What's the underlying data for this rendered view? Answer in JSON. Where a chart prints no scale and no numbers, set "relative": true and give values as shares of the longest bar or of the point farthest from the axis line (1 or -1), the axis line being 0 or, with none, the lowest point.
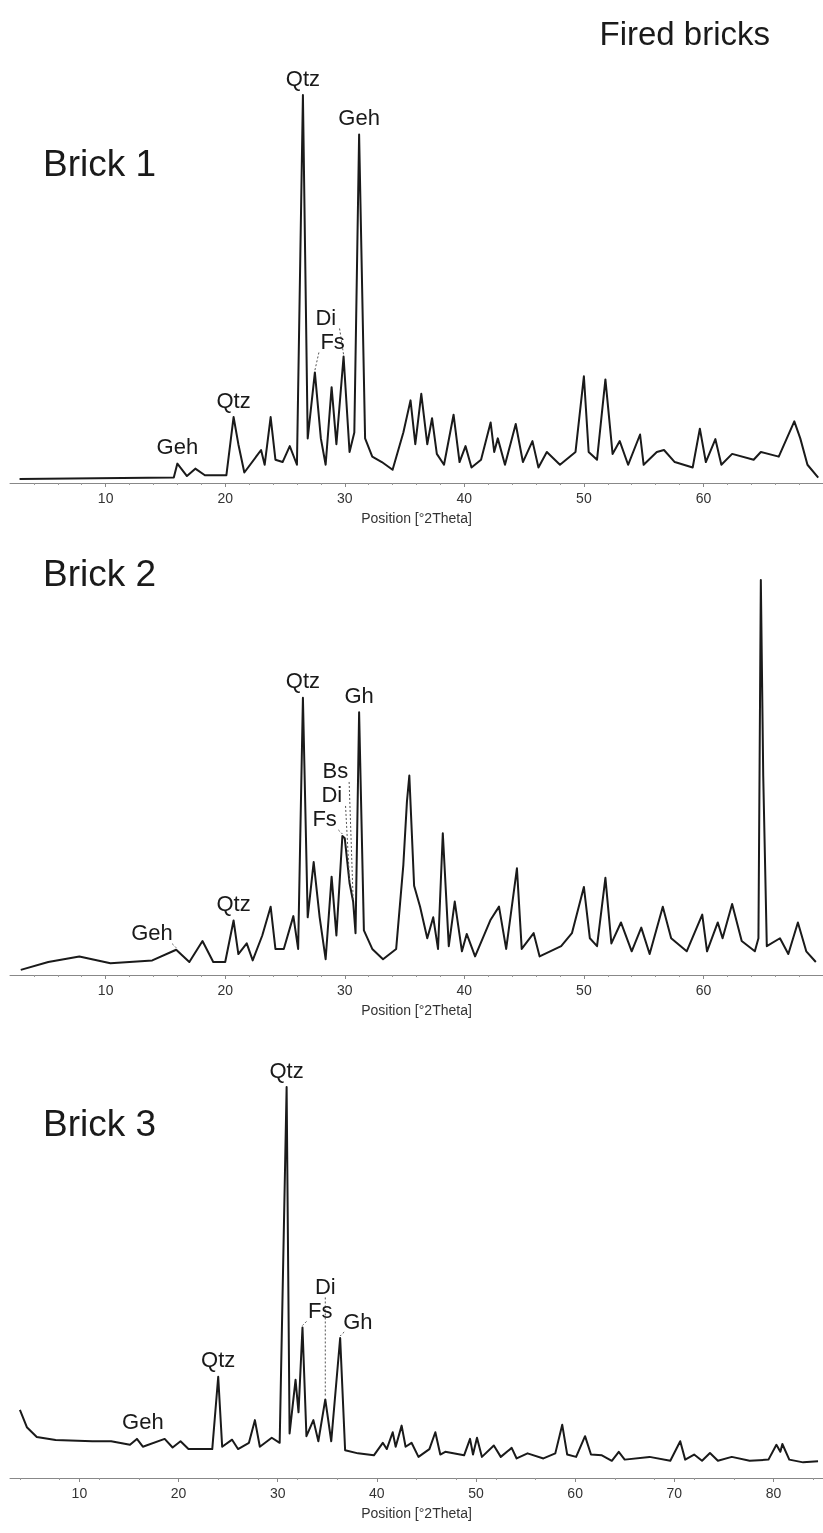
{
  "chart_data": [
    {
      "type": "line",
      "title": "Brick 1",
      "subtitle": "Fired bricks",
      "xlabel": "Position [°2Theta]",
      "relative": true,
      "xlim": [
        2,
        70
      ],
      "xticks": [
        10,
        20,
        30,
        40,
        50,
        60
      ],
      "series": [
        {
          "color": "#1a1a1a",
          "x": [
            2.8,
            15.7,
            16.0,
            16.8,
            17.5,
            18.3,
            20.1,
            20.7,
            21.1,
            21.6,
            23.0,
            23.3,
            23.8,
            24.2,
            24.8,
            25.4,
            26.0,
            26.5,
            26.9,
            27.5,
            28.0,
            28.4,
            28.9,
            29.3,
            29.9,
            30.4,
            30.8,
            31.2,
            31.7,
            32.3,
            33.1,
            34.0,
            34.9,
            35.5,
            35.9,
            36.4,
            36.9,
            37.3,
            37.7,
            38.3,
            39.1,
            39.6,
            40.1,
            40.6,
            41.4,
            42.2,
            42.5,
            42.8,
            43.4,
            44.3,
            44.9,
            45.7,
            46.2,
            46.9,
            48.0,
            49.3,
            50.0,
            50.4,
            51.1,
            51.8,
            52.4,
            53.0,
            53.7,
            54.7,
            55.0,
            56.1,
            56.7,
            57.6,
            59.1,
            59.7,
            60.2,
            61.0,
            61.5,
            62.4,
            64.2,
            64.8,
            66.3,
            67.6,
            68.1,
            68.7,
            69.6
          ],
          "values": [
            0.01,
            0.014,
            0.05,
            0.018,
            0.037,
            0.02,
            0.02,
            0.17,
            0.1,
            0.027,
            0.085,
            0.047,
            0.17,
            0.06,
            0.054,
            0.095,
            0.047,
            1.0,
            0.115,
            0.285,
            0.115,
            0.047,
            0.247,
            0.1,
            0.326,
            0.08,
            0.13,
            0.898,
            0.115,
            0.068,
            0.054,
            0.034,
            0.13,
            0.213,
            0.1,
            0.23,
            0.1,
            0.167,
            0.075,
            0.047,
            0.176,
            0.054,
            0.095,
            0.04,
            0.06,
            0.156,
            0.08,
            0.115,
            0.047,
            0.152,
            0.054,
            0.108,
            0.04,
            0.08,
            0.047,
            0.08,
            0.275,
            0.08,
            0.06,
            0.267,
            0.075,
            0.108,
            0.047,
            0.125,
            0.047,
            0.08,
            0.085,
            0.054,
            0.04,
            0.14,
            0.054,
            0.113,
            0.047,
            0.075,
            0.06,
            0.08,
            0.068,
            0.159,
            0.115,
            0.047,
            0.014
          ]
        }
      ],
      "annotations": [
        {
          "text": "Geh",
          "x": 16.0,
          "y": 0.05
        },
        {
          "text": "Qtz",
          "x": 20.7,
          "y": 0.17
        },
        {
          "text": "Qtz",
          "x": 26.5,
          "y": 1.0
        },
        {
          "text": "Fs",
          "x": 27.5,
          "y": 0.285
        },
        {
          "text": "Di",
          "x": 29.9,
          "y": 0.326
        },
        {
          "text": "Geh",
          "x": 31.2,
          "y": 0.898
        }
      ]
    },
    {
      "type": "line",
      "title": "Brick 2",
      "xlabel": "Position [°2Theta]",
      "relative": true,
      "xlim": [
        2,
        70
      ],
      "xticks": [
        10,
        20,
        30,
        40,
        50,
        60
      ],
      "series": [
        {
          "color": "#1a1a1a",
          "x": [
            2.9,
            5.2,
            7.8,
            10.4,
            13.9,
            15.9,
            17.0,
            18.1,
            19.0,
            20.0,
            20.7,
            21.1,
            21.8,
            22.3,
            23.1,
            23.8,
            24.2,
            24.9,
            25.7,
            26.1,
            26.5,
            26.9,
            27.4,
            27.9,
            28.4,
            28.9,
            29.3,
            29.8,
            30.0,
            30.4,
            30.7,
            30.9,
            31.2,
            31.6,
            32.3,
            33.2,
            34.3,
            34.9,
            35.2,
            35.4,
            35.8,
            36.3,
            36.9,
            37.4,
            37.8,
            38.2,
            38.7,
            39.2,
            39.8,
            40.2,
            40.9,
            42.2,
            42.9,
            43.5,
            44.4,
            44.8,
            45.8,
            46.3,
            48.1,
            49.0,
            50.0,
            50.5,
            51.1,
            51.8,
            52.3,
            53.1,
            54.0,
            54.8,
            55.5,
            56.6,
            57.3,
            58.6,
            59.9,
            60.3,
            61.2,
            61.6,
            62.4,
            63.2,
            64.3,
            64.6,
            64.8,
            65.0,
            65.3,
            66.4,
            67.1,
            67.9,
            68.6,
            69.4
          ],
          "values": [
            0.013,
            0.033,
            0.047,
            0.03,
            0.037,
            0.064,
            0.033,
            0.086,
            0.033,
            0.033,
            0.138,
            0.053,
            0.08,
            0.037,
            0.1,
            0.173,
            0.066,
            0.066,
            0.149,
            0.066,
            0.702,
            0.146,
            0.286,
            0.146,
            0.04,
            0.249,
            0.1,
            0.352,
            0.346,
            0.233,
            0.186,
            0.106,
            0.665,
            0.113,
            0.066,
            0.04,
            0.066,
            0.279,
            0.439,
            0.505,
            0.226,
            0.173,
            0.093,
            0.146,
            0.066,
            0.359,
            0.073,
            0.186,
            0.06,
            0.104,
            0.047,
            0.14,
            0.173,
            0.066,
            0.27,
            0.066,
            0.106,
            0.047,
            0.073,
            0.106,
            0.223,
            0.093,
            0.073,
            0.246,
            0.08,
            0.133,
            0.06,
            0.12,
            0.053,
            0.173,
            0.093,
            0.06,
            0.153,
            0.06,
            0.133,
            0.093,
            0.18,
            0.086,
            0.06,
            0.093,
            1.0,
            0.505,
            0.073,
            0.093,
            0.053,
            0.133,
            0.06,
            0.033
          ]
        }
      ],
      "annotations": [
        {
          "text": "Geh",
          "x": 15.9,
          "y": 0.064
        },
        {
          "text": "Qtz",
          "x": 20.7,
          "y": 0.138
        },
        {
          "text": "Qtz",
          "x": 26.5,
          "y": 0.702
        },
        {
          "text": "Fs",
          "x": 29.8,
          "y": 0.352
        },
        {
          "text": "Di",
          "x": 30.4,
          "y": 0.233
        },
        {
          "text": "Bs",
          "x": 30.7,
          "y": 0.186
        },
        {
          "text": "Gh",
          "x": 31.2,
          "y": 0.665
        }
      ]
    },
    {
      "type": "line",
      "title": "Brick 3",
      "xlabel": "Position [°2Theta]",
      "relative": true,
      "xlim": [
        3,
        85
      ],
      "xticks": [
        10,
        20,
        30,
        40,
        50,
        60,
        70,
        80
      ],
      "series": [
        {
          "color": "#1a1a1a",
          "x": [
            4.0,
            4.7,
            5.7,
            7.6,
            11.3,
            13.2,
            15.1,
            15.8,
            16.4,
            18.6,
            19.4,
            20.2,
            21.0,
            23.4,
            24.0,
            24.4,
            25.4,
            26.0,
            27.1,
            27.7,
            28.2,
            29.4,
            30.2,
            30.9,
            31.2,
            31.8,
            32.1,
            32.5,
            32.9,
            33.6,
            34.1,
            34.8,
            35.4,
            36.3,
            36.8,
            38.1,
            39.7,
            40.6,
            41.0,
            41.6,
            41.9,
            42.5,
            42.9,
            43.5,
            44.2,
            45.3,
            45.9,
            46.4,
            46.9,
            48.8,
            49.4,
            49.7,
            50.1,
            50.6,
            51.8,
            52.5,
            53.6,
            54.1,
            55.2,
            56.8,
            58.0,
            58.7,
            59.2,
            60.1,
            61.0,
            61.6,
            62.7,
            63.7,
            64.4,
            65.0,
            67.5,
            69.6,
            70.6,
            71.1,
            72.0,
            72.8,
            73.6,
            74.4,
            75.8,
            77.6,
            79.5,
            80.3,
            80.7,
            80.9,
            81.6,
            83.0,
            84.5
          ],
          "values": [
            0.174,
            0.13,
            0.105,
            0.097,
            0.094,
            0.094,
            0.085,
            0.1,
            0.08,
            0.1,
            0.078,
            0.094,
            0.074,
            0.074,
            0.259,
            0.08,
            0.098,
            0.074,
            0.09,
            0.148,
            0.08,
            0.103,
            0.09,
            1.0,
            0.114,
            0.251,
            0.168,
            0.385,
            0.107,
            0.148,
            0.094,
            0.201,
            0.094,
            0.358,
            0.071,
            0.063,
            0.058,
            0.09,
            0.074,
            0.117,
            0.08,
            0.134,
            0.08,
            0.09,
            0.054,
            0.074,
            0.117,
            0.06,
            0.067,
            0.058,
            0.1,
            0.06,
            0.103,
            0.054,
            0.083,
            0.054,
            0.077,
            0.05,
            0.063,
            0.05,
            0.063,
            0.136,
            0.06,
            0.054,
            0.107,
            0.06,
            0.058,
            0.044,
            0.067,
            0.047,
            0.054,
            0.044,
            0.094,
            0.047,
            0.06,
            0.044,
            0.064,
            0.044,
            0.054,
            0.044,
            0.047,
            0.085,
            0.067,
            0.087,
            0.047,
            0.04,
            0.043
          ]
        }
      ],
      "annotations": [
        {
          "text": "Geh",
          "x": 16.4,
          "y": 0.1
        },
        {
          "text": "Qtz",
          "x": 24.0,
          "y": 0.259
        },
        {
          "text": "Qtz",
          "x": 30.9,
          "y": 1.0
        },
        {
          "text": "Fs",
          "x": 32.5,
          "y": 0.385
        },
        {
          "text": "Di",
          "x": 34.8,
          "y": 0.201
        },
        {
          "text": "Gh",
          "x": 36.3,
          "y": 0.358
        }
      ]
    }
  ]
}
